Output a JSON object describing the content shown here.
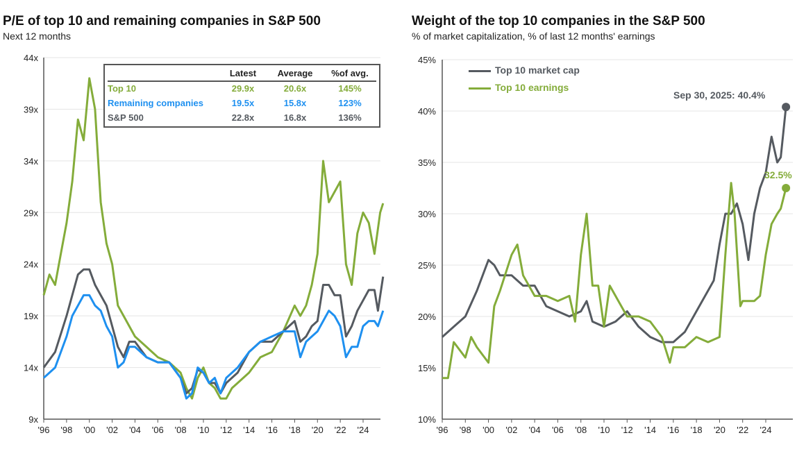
{
  "colors": {
    "top10": "#84ac3a",
    "remaining": "#1e90f0",
    "sp500": "#555a60",
    "grid": "#e4e4e4",
    "axis": "#555"
  },
  "left": {
    "title": "P/E of top 10 and remaining companies in S&P 500",
    "subtitle": "Next 12 months",
    "table": {
      "headers": [
        "Latest",
        "Average",
        "%of avg."
      ],
      "rows": [
        {
          "label": "Top 10",
          "latest": "29.9x",
          "average": "20.6x",
          "pct": "145%"
        },
        {
          "label": "Remaining companies",
          "latest": "19.5x",
          "average": "15.8x",
          "pct": "123%"
        },
        {
          "label": "S&P 500",
          "latest": "22.8x",
          "average": "16.8x",
          "pct": "136%"
        }
      ]
    }
  },
  "right": {
    "title": "Weight of the top 10 companies in the S&P 500",
    "subtitle": "% of market capitalization, % of last 12 months' earnings",
    "legend": [
      "Top 10 market cap",
      "Top 10 earnings"
    ],
    "annotations": [
      "Sep 30, 2025: 40.4%",
      "32.5%"
    ]
  },
  "chart_data": [
    {
      "type": "line",
      "title": "P/E of top 10 and remaining companies in S&P 500",
      "ylim": [
        9,
        44
      ],
      "yticks": [
        "9x",
        "14x",
        "19x",
        "24x",
        "29x",
        "34x",
        "39x",
        "44x"
      ],
      "ytick_values": [
        9,
        14,
        19,
        24,
        29,
        34,
        39,
        44
      ],
      "xticks": [
        "'96",
        "'98",
        "'00",
        "'02",
        "'04",
        "'06",
        "'08",
        "'10",
        "'12",
        "'14",
        "'16",
        "'18",
        "'20",
        "'22",
        "'24"
      ],
      "xlim": [
        1996,
        2025.75
      ],
      "series": [
        {
          "name": "Top 10",
          "color_key": "top10",
          "x": [
            1996,
            1996.5,
            1997,
            1997.5,
            1998,
            1998.5,
            1999,
            1999.5,
            2000,
            2000.5,
            2001,
            2001.5,
            2002,
            2002.5,
            2003,
            2003.5,
            2004,
            2005,
            2006,
            2007,
            2008,
            2008.5,
            2009,
            2009.5,
            2010,
            2010.5,
            2011,
            2011.5,
            2012,
            2012.5,
            2013,
            2014,
            2015,
            2016,
            2017,
            2018,
            2018.5,
            2019,
            2019.5,
            2020,
            2020.5,
            2021,
            2021.5,
            2022,
            2022.5,
            2023,
            2023.5,
            2024,
            2024.5,
            2025,
            2025.5,
            2025.75
          ],
          "y": [
            21,
            23,
            22,
            25,
            28,
            32,
            38,
            36,
            42,
            39,
            30,
            26,
            24,
            20,
            19,
            18,
            17,
            16,
            15,
            14.5,
            13.5,
            12,
            11,
            13,
            14,
            12.5,
            12,
            11,
            11,
            12,
            12.5,
            13.5,
            15,
            15.5,
            17.5,
            20,
            19,
            20,
            22,
            25,
            34,
            30,
            31,
            32,
            24,
            22,
            27,
            29,
            28,
            25,
            29,
            29.9
          ]
        },
        {
          "name": "S&P 500",
          "color_key": "sp500",
          "x": [
            1996,
            1997,
            1998,
            1998.5,
            1999,
            1999.5,
            2000,
            2000.5,
            2001,
            2001.5,
            2002,
            2002.5,
            2003,
            2003.5,
            2004,
            2005,
            2006,
            2007,
            2008,
            2008.5,
            2009,
            2009.5,
            2010,
            2010.5,
            2011,
            2011.5,
            2012,
            2013,
            2014,
            2015,
            2016,
            2017,
            2018,
            2018.5,
            2019,
            2019.5,
            2020,
            2020.5,
            2021,
            2021.5,
            2022,
            2022.5,
            2023,
            2023.5,
            2024,
            2024.5,
            2025,
            2025.3,
            2025.75
          ],
          "y": [
            14,
            15.5,
            19,
            21,
            23,
            23.5,
            23.5,
            22,
            21,
            20,
            18,
            16,
            15,
            16.5,
            16.5,
            15,
            14.5,
            14.5,
            13,
            11.5,
            12,
            13.8,
            13.5,
            12.5,
            12.5,
            11.5,
            12.5,
            13.5,
            15.5,
            16.5,
            16.5,
            17.5,
            18.5,
            16.5,
            17,
            18,
            18.5,
            22,
            22,
            21,
            21,
            17,
            18,
            19.5,
            20.5,
            21.5,
            21.5,
            19.5,
            22.8
          ]
        },
        {
          "name": "Remaining companies",
          "color_key": "remaining",
          "x": [
            1996,
            1997,
            1998,
            1998.5,
            1999,
            1999.5,
            2000,
            2000.5,
            2001,
            2001.5,
            2002,
            2002.5,
            2003,
            2003.5,
            2004,
            2005,
            2006,
            2007,
            2008,
            2008.5,
            2009,
            2009.5,
            2010,
            2010.5,
            2011,
            2011.5,
            2012,
            2013,
            2014,
            2015,
            2016,
            2017,
            2018,
            2018.5,
            2019,
            2019.5,
            2020,
            2020.5,
            2021,
            2021.5,
            2022,
            2022.5,
            2023,
            2023.5,
            2024,
            2024.5,
            2025,
            2025.3,
            2025.75
          ],
          "y": [
            13,
            14,
            17,
            19,
            20,
            21,
            21,
            20,
            19.5,
            18,
            17,
            14,
            14.5,
            16,
            16,
            15,
            14.5,
            14.5,
            13,
            11,
            11.5,
            14,
            13.5,
            12.5,
            13,
            11.5,
            13,
            14,
            15.5,
            16.5,
            17,
            17.5,
            17.5,
            15,
            16.5,
            17,
            17.5,
            18.5,
            19.5,
            19,
            18,
            15,
            16,
            16,
            18,
            18.5,
            18.5,
            18,
            19.5
          ]
        }
      ]
    },
    {
      "type": "line",
      "title": "Weight of the top 10 companies in the S&P 500",
      "ylim": [
        10,
        45
      ],
      "yticks": [
        "10%",
        "15%",
        "20%",
        "25%",
        "30%",
        "35%",
        "40%",
        "45%"
      ],
      "ytick_values": [
        10,
        15,
        20,
        25,
        30,
        35,
        40,
        45
      ],
      "xticks": [
        "'96",
        "'98",
        "'00",
        "'02",
        "'04",
        "'06",
        "'08",
        "'10",
        "'12",
        "'14",
        "'16",
        "'18",
        "'20",
        "'22",
        "'24"
      ],
      "xlim": [
        1996,
        2025.75
      ],
      "series": [
        {
          "name": "Top 10 market cap",
          "color_key": "sp500",
          "x": [
            1996,
            1997,
            1998,
            1999,
            2000,
            2000.5,
            2001,
            2002,
            2003,
            2004,
            2005,
            2006,
            2007,
            2008,
            2008.5,
            2009,
            2010,
            2011,
            2012,
            2013,
            2014,
            2015,
            2016,
            2017,
            2018,
            2019,
            2019.5,
            2020,
            2020.5,
            2021,
            2021.5,
            2022,
            2022.5,
            2023,
            2023.5,
            2024,
            2024.5,
            2025,
            2025.3,
            2025.75
          ],
          "y": [
            18,
            19,
            20,
            22.5,
            25.5,
            25,
            24,
            24,
            23,
            23,
            21,
            20.5,
            20,
            20.5,
            21.5,
            19.5,
            19,
            19.5,
            20.5,
            19,
            18,
            17.5,
            17.5,
            18.5,
            20.5,
            22.5,
            23.5,
            27,
            30,
            30,
            31,
            29,
            25.5,
            30,
            32.5,
            34,
            37.5,
            35,
            35.5,
            40.4
          ]
        },
        {
          "name": "Top 10 earnings",
          "color_key": "top10",
          "x": [
            1996,
            1996.5,
            1997,
            1998,
            1998.5,
            1999,
            2000,
            2000.5,
            2001,
            2002,
            2002.5,
            2003,
            2004,
            2005,
            2006,
            2007,
            2007.5,
            2008,
            2008.5,
            2009,
            2009.5,
            2010,
            2010.5,
            2011,
            2012,
            2013,
            2014,
            2015,
            2015.7,
            2016,
            2017,
            2018,
            2019,
            2020,
            2020.5,
            2021,
            2021.3,
            2021.8,
            2022,
            2023,
            2023.5,
            2024,
            2024.5,
            2025,
            2025.3,
            2025.75
          ],
          "y": [
            14,
            14,
            17.5,
            16,
            18,
            17,
            15.5,
            21,
            22.5,
            26,
            27,
            24,
            22,
            22,
            21.5,
            22,
            19.5,
            26,
            30,
            23,
            23,
            19,
            23,
            22,
            20,
            20,
            19.5,
            18,
            15.5,
            17,
            17,
            18,
            17.5,
            18,
            26,
            33,
            30,
            21,
            21.5,
            21.5,
            22,
            26,
            29,
            30,
            30.5,
            32.5
          ]
        }
      ]
    }
  ]
}
